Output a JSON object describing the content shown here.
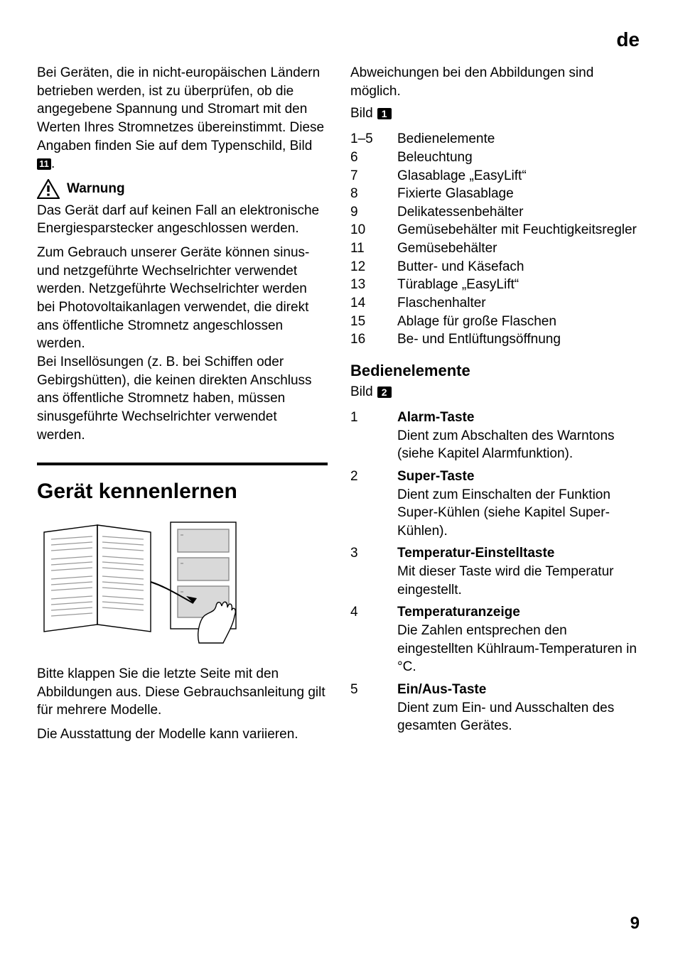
{
  "header": {
    "lang": "de"
  },
  "footer": {
    "page": "9"
  },
  "left": {
    "intro_para": "Bei Geräten, die in nicht-europäischen Ländern betrieben werden, ist zu überprüfen, ob die angegebene Spannung und Stromart mit den Werten Ihres Stromnetzes übereinstimmt. Diese Angaben finden Sie auf dem Typenschild, Bild ",
    "intro_bildnum": "11",
    "intro_suffix": ".",
    "warnung_label": "Warnung",
    "warnung_p1": "Das Gerät darf auf keinen Fall an elektronische Energiesparstecker angeschlossen werden.",
    "warnung_p2": "Zum Gebrauch unserer Geräte können sinus- und netzgeführte Wechselrichter verwendet werden. Netzgeführte Wechselrichter werden bei Photovoltaikanlagen verwendet, die direkt ans öffentliche Stromnetz angeschlossen werden.\nBei Insellösungen (z. B. bei Schiffen oder Gebirgshütten), die keinen direkten Anschluss ans öffentliche Stromnetz haben, müssen sinusgeführte Wechselrichter verwendet werden.",
    "h1": "Gerät kennenlernen",
    "p_after_illus_1": "Bitte klappen Sie die letzte Seite mit den Abbildungen aus. Diese Gebrauchsanleitung gilt für mehrere Modelle.",
    "p_after_illus_2": "Die Ausstattung der Modelle kann variieren."
  },
  "right": {
    "p_top": "Abweichungen bei den Abbildungen sind möglich.",
    "bild_label": "Bild",
    "bild_num_1": "1",
    "items": [
      {
        "n": "1–5",
        "t": "Bedienelemente"
      },
      {
        "n": "6",
        "t": "Beleuchtung"
      },
      {
        "n": "7",
        "t": "Glasablage „EasyLift“"
      },
      {
        "n": "8",
        "t": "Fixierte Glasablage"
      },
      {
        "n": "9",
        "t": "Delikatessenbehälter"
      },
      {
        "n": "10",
        "t": "Gemüsebehälter mit Feuchtigkeitsregler"
      },
      {
        "n": "11",
        "t": "Gemüsebehälter"
      },
      {
        "n": "12",
        "t": "Butter- und Käsefach"
      },
      {
        "n": "13",
        "t": "Türablage „EasyLift“"
      },
      {
        "n": "14",
        "t": "Flaschenhalter"
      },
      {
        "n": "15",
        "t": "Ablage für große Flaschen"
      },
      {
        "n": "16",
        "t": "Be- und Entlüftungsöffnung"
      }
    ],
    "h2": "Bedienelemente",
    "bild_num_2": "2",
    "controls": [
      {
        "n": "1",
        "title": "Alarm-Taste",
        "desc": "Dient zum Abschalten des Warntons (siehe Kapitel Alarmfunktion)."
      },
      {
        "n": "2",
        "title": "Super-Taste",
        "desc": "Dient zum Einschalten der Funktion Super-Kühlen (siehe Kapitel Super-Kühlen)."
      },
      {
        "n": "3",
        "title": "Temperatur-Einstelltaste",
        "desc": "Mit dieser Taste wird die Temperatur eingestellt."
      },
      {
        "n": "4",
        "title": "Temperaturanzeige",
        "desc": "Die Zahlen entsprechen den eingestellten Kühlraum-Temperaturen in °C."
      },
      {
        "n": "5",
        "title": "Ein/Aus-Taste",
        "desc": "Dient zum Ein- und Ausschalten des gesamten Gerätes."
      }
    ]
  }
}
